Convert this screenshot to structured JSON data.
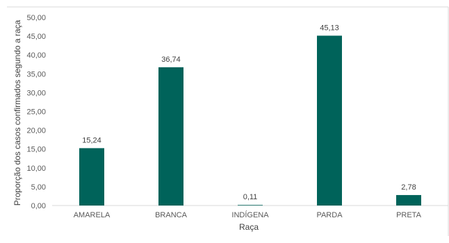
{
  "chart_data": {
    "type": "bar",
    "categories": [
      "AMARELA",
      "BRANCA",
      "INDÍGENA",
      "PARDA",
      "PRETA"
    ],
    "values": [
      15.24,
      36.74,
      0.11,
      45.13,
      2.78
    ],
    "value_labels": [
      "15,24",
      "36,74",
      "0,11",
      "45,13",
      "2,78"
    ],
    "title": "",
    "xlabel": "Raça",
    "ylabel": "Proporção dos casos confirmados segundo a raça",
    "ylim": [
      0,
      50
    ],
    "yticks": [
      "0,00",
      "5,00",
      "10,00",
      "15,00",
      "20,00",
      "25,00",
      "30,00",
      "35,00",
      "40,00",
      "45,00",
      "50,00"
    ],
    "grid": false,
    "legend": "none",
    "bar_color": "#00635A"
  }
}
